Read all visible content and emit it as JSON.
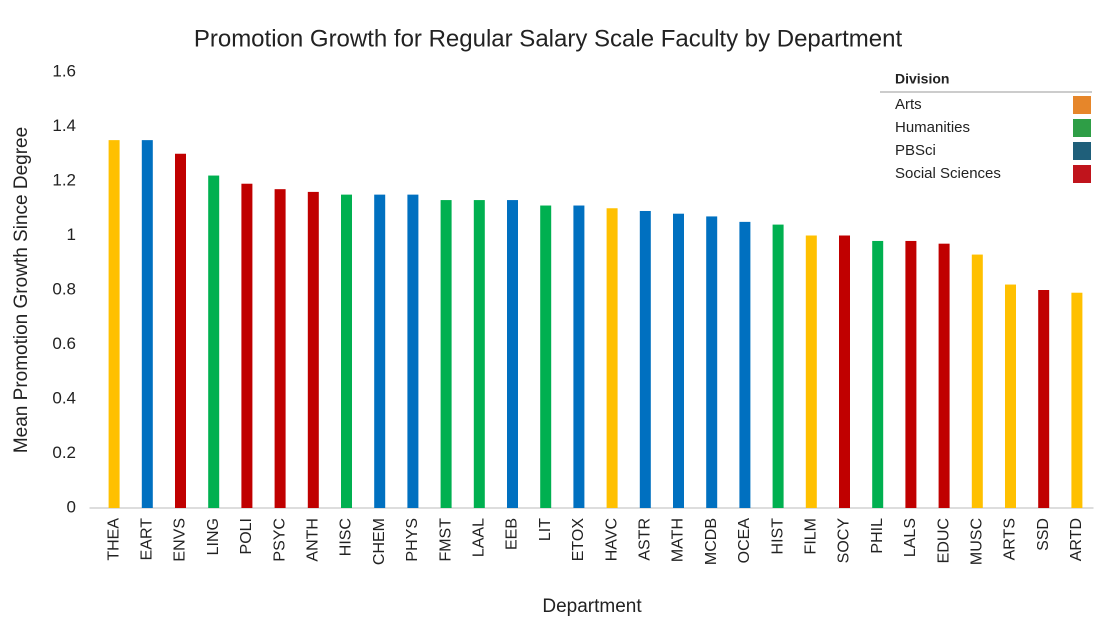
{
  "chart_data": {
    "type": "bar",
    "title": "Promotion Growth for Regular Salary Scale Faculty by Department",
    "x_label": "Department",
    "y_label": "Mean Promotion Growth Since Degree",
    "categories": [
      "THEA",
      "EART",
      "ENVS",
      "LING",
      "POLI",
      "PSYC",
      "ANTH",
      "HISC",
      "CHEM",
      "PHYS",
      "FMST",
      "LAAL",
      "EEB",
      "LIT",
      "ETOX",
      "HAVC",
      "ASTR",
      "MATH",
      "MCDB",
      "OCEA",
      "HIST",
      "FILM",
      "SOCY",
      "PHIL",
      "LALS",
      "EDUC",
      "MUSC",
      "ARTS",
      "SSD",
      "ARTD"
    ],
    "values": [
      1.35,
      1.35,
      1.3,
      1.22,
      1.19,
      1.17,
      1.16,
      1.15,
      1.15,
      1.15,
      1.13,
      1.13,
      1.13,
      1.11,
      1.11,
      1.1,
      1.09,
      1.08,
      1.07,
      1.05,
      1.04,
      1.0,
      1.0,
      0.98,
      0.98,
      0.97,
      0.93,
      0.82,
      0.8,
      0.79
    ],
    "colors": [
      "#ffc000",
      "#0070c0",
      "#c00000",
      "#00b050",
      "#c00000",
      "#c00000",
      "#c00000",
      "#00b050",
      "#0070c0",
      "#0070c0",
      "#00b050",
      "#00b050",
      "#0070c0",
      "#00b050",
      "#0070c0",
      "#ffc000",
      "#0070c0",
      "#0070c0",
      "#0070c0",
      "#0070c0",
      "#00b050",
      "#ffc000",
      "#c00000",
      "#00b050",
      "#c00000",
      "#c00000",
      "#ffc000",
      "#ffc000",
      "#c00000",
      "#ffc000"
    ],
    "ylim": [
      0,
      1.6
    ],
    "yticks": [
      0,
      0.2,
      0.4,
      0.6,
      0.8,
      1,
      1.2,
      1.4,
      1.6
    ],
    "grid": false,
    "legend": {
      "title": "Division",
      "position": "upper right",
      "entries": [
        {
          "name": "Arts",
          "color": "#e6862a"
        },
        {
          "name": "Humanities",
          "color": "#2e9e46"
        },
        {
          "name": "PBSci",
          "color": "#1f5f7a"
        },
        {
          "name": "Social Sciences",
          "color": "#c0141c"
        }
      ]
    }
  }
}
